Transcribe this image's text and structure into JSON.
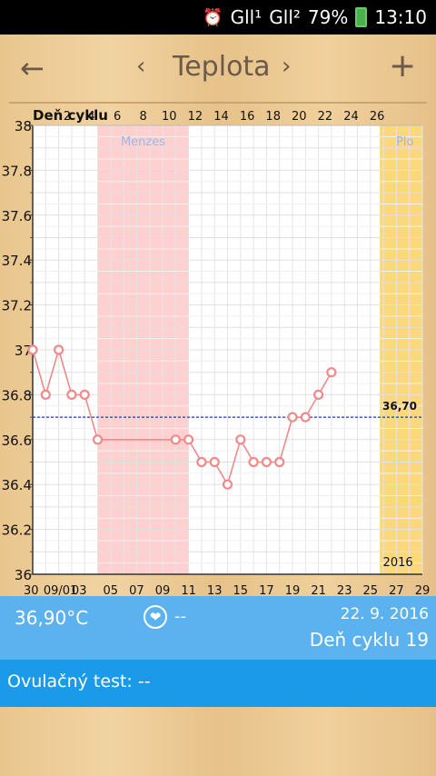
{
  "statusbar": {
    "alarm_icon": "alarm-icon",
    "signal1": "G‎ll¹",
    "signal2": "G‎ll²",
    "battery_pct": "79%",
    "time": "13:10"
  },
  "appbar": {
    "back_icon": "arrow-left-icon",
    "prev_icon": "chevron-left-icon",
    "title": "Teplota",
    "next_icon": "chevron-right-icon",
    "add_icon": "plus-icon"
  },
  "chart_data": {
    "type": "line",
    "top_axis_label": "Deň cyklu",
    "top_ticks": [
      "2",
      "4",
      "6",
      "8",
      "10",
      "12",
      "14",
      "16",
      "18",
      "20",
      "22",
      "24",
      "26"
    ],
    "bottom_ticks": [
      "30",
      "09/01",
      "03",
      "05",
      "07",
      "09",
      "11",
      "13",
      "15",
      "17",
      "19",
      "21",
      "23",
      "25",
      "27",
      "29"
    ],
    "y_ticks": [
      "38",
      "37.8",
      "37.6",
      "37.4",
      "37.2",
      "37",
      "36.8",
      "36.6",
      "36.4",
      "36.2",
      "36"
    ],
    "ylim": [
      36,
      38
    ],
    "coverline_label": "36,70",
    "coverline_value": 36.7,
    "menses_label": "Menzes",
    "fertile_label": "Plo",
    "year_label": "2016",
    "series": [
      {
        "values": [
          [
            0,
            37.0
          ],
          [
            1,
            36.8
          ],
          [
            2,
            37.0
          ],
          [
            3,
            36.8
          ],
          [
            4,
            36.8
          ],
          [
            5,
            36.6
          ],
          [
            11,
            36.6
          ],
          [
            12,
            36.6
          ],
          [
            13,
            36.5
          ],
          [
            14,
            36.5
          ],
          [
            15,
            36.4
          ],
          [
            16,
            36.6
          ],
          [
            17,
            36.5
          ],
          [
            18,
            36.5
          ],
          [
            19,
            36.5
          ],
          [
            20,
            36.7
          ],
          [
            21,
            36.7
          ],
          [
            22,
            36.8
          ],
          [
            23,
            36.9
          ]
        ],
        "color": "#f08a8a"
      }
    ],
    "menses_range": [
      5,
      12
    ],
    "fertile_range": [
      27,
      30
    ]
  },
  "info": {
    "temperature": "36,90°C",
    "heart_value": "--",
    "date": "22. 9. 2016",
    "cycle_day": "Deň cyklu 19"
  },
  "ovulation": {
    "text": "Ovulačný test: --"
  }
}
